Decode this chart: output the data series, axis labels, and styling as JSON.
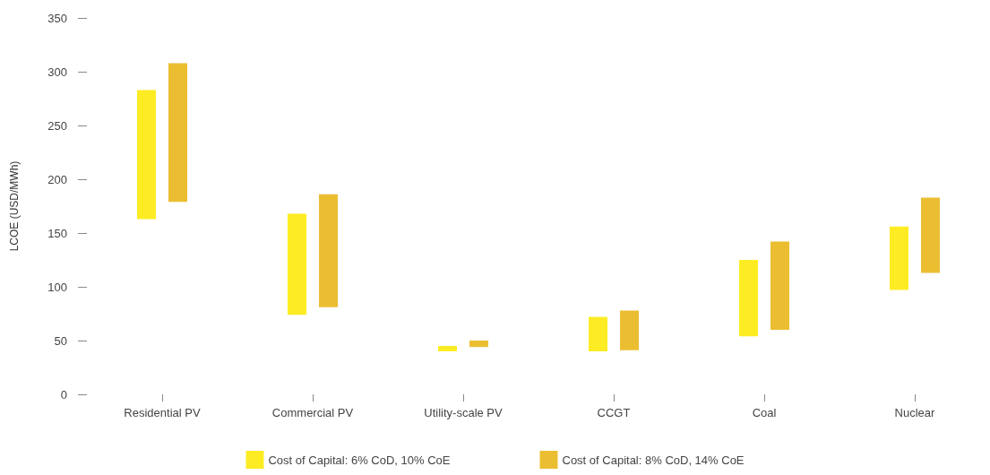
{
  "chart_data": {
    "type": "bar",
    "ylabel": "LCOE (USD/MWh)",
    "categories": [
      "Residential PV",
      "Commercial PV",
      "Utility-scale PV",
      "CCGT",
      "Coal",
      "Nuclear"
    ],
    "series": [
      {
        "name": "Cost of Capital: 6% CoD, 10% CoE",
        "color": "#fdec23",
        "base": [
          163,
          74,
          40,
          40,
          54,
          97
        ],
        "values": [
          120,
          94,
          5,
          32,
          71,
          59
        ]
      },
      {
        "name": "Cost of Capital: 8% CoD, 14% CoE",
        "color": "#ebbe32",
        "base": [
          179,
          81,
          44,
          41,
          60,
          113
        ],
        "values": [
          129,
          105,
          6,
          37,
          82,
          70
        ]
      }
    ],
    "ylim": [
      0,
      350
    ],
    "yticks": [
      0,
      50,
      100,
      150,
      200,
      250,
      300,
      350
    ],
    "grid": false,
    "legend": "bottom"
  }
}
